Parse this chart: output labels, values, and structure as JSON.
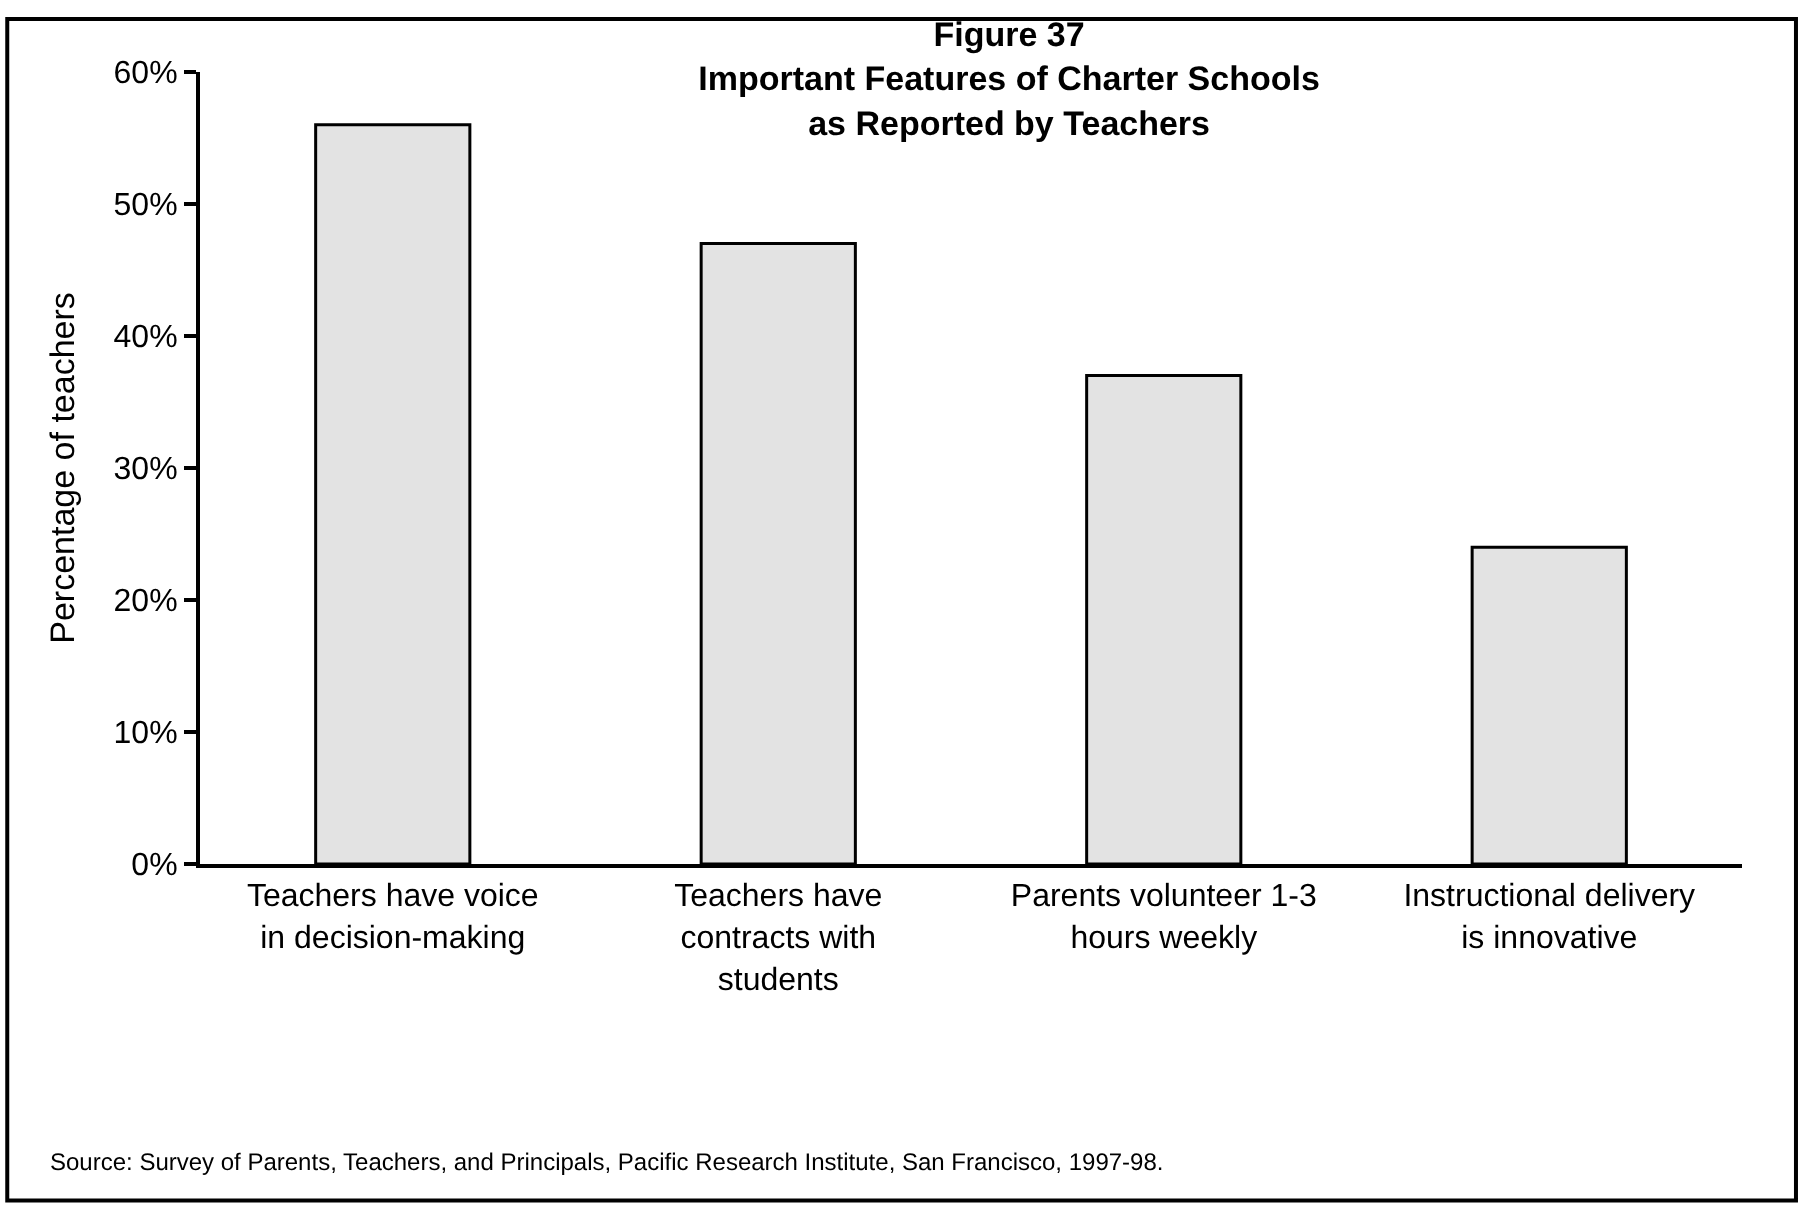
{
  "chart_data": {
    "type": "bar",
    "title": "Figure 37\nImportant Features of Charter Schools\nas Reported by Teachers",
    "categories": [
      "Teachers have voice\nin decision-making",
      "Teachers have\ncontracts with\nstudents",
      "Parents volunteer 1-3\nhours weekly",
      "Instructional delivery\nis innovative"
    ],
    "values": [
      56,
      47,
      37,
      24
    ],
    "color": "#e3e3e3",
    "ylabel": "Percentage of teachers",
    "ylim": [
      0,
      60
    ],
    "yticks": [
      {
        "value": 0,
        "label": "0%"
      },
      {
        "value": 10,
        "label": "10%"
      },
      {
        "value": 20,
        "label": "20%"
      },
      {
        "value": 30,
        "label": "30%"
      },
      {
        "value": 40,
        "label": "40%"
      },
      {
        "value": 50,
        "label": "50%"
      },
      {
        "value": 60,
        "label": "60%"
      }
    ],
    "grid": false,
    "legend": false,
    "annotations": [
      "Source: Survey of Parents, Teachers, and Principals, Pacific Research Institute, San Francisco, 1997-98."
    ]
  }
}
